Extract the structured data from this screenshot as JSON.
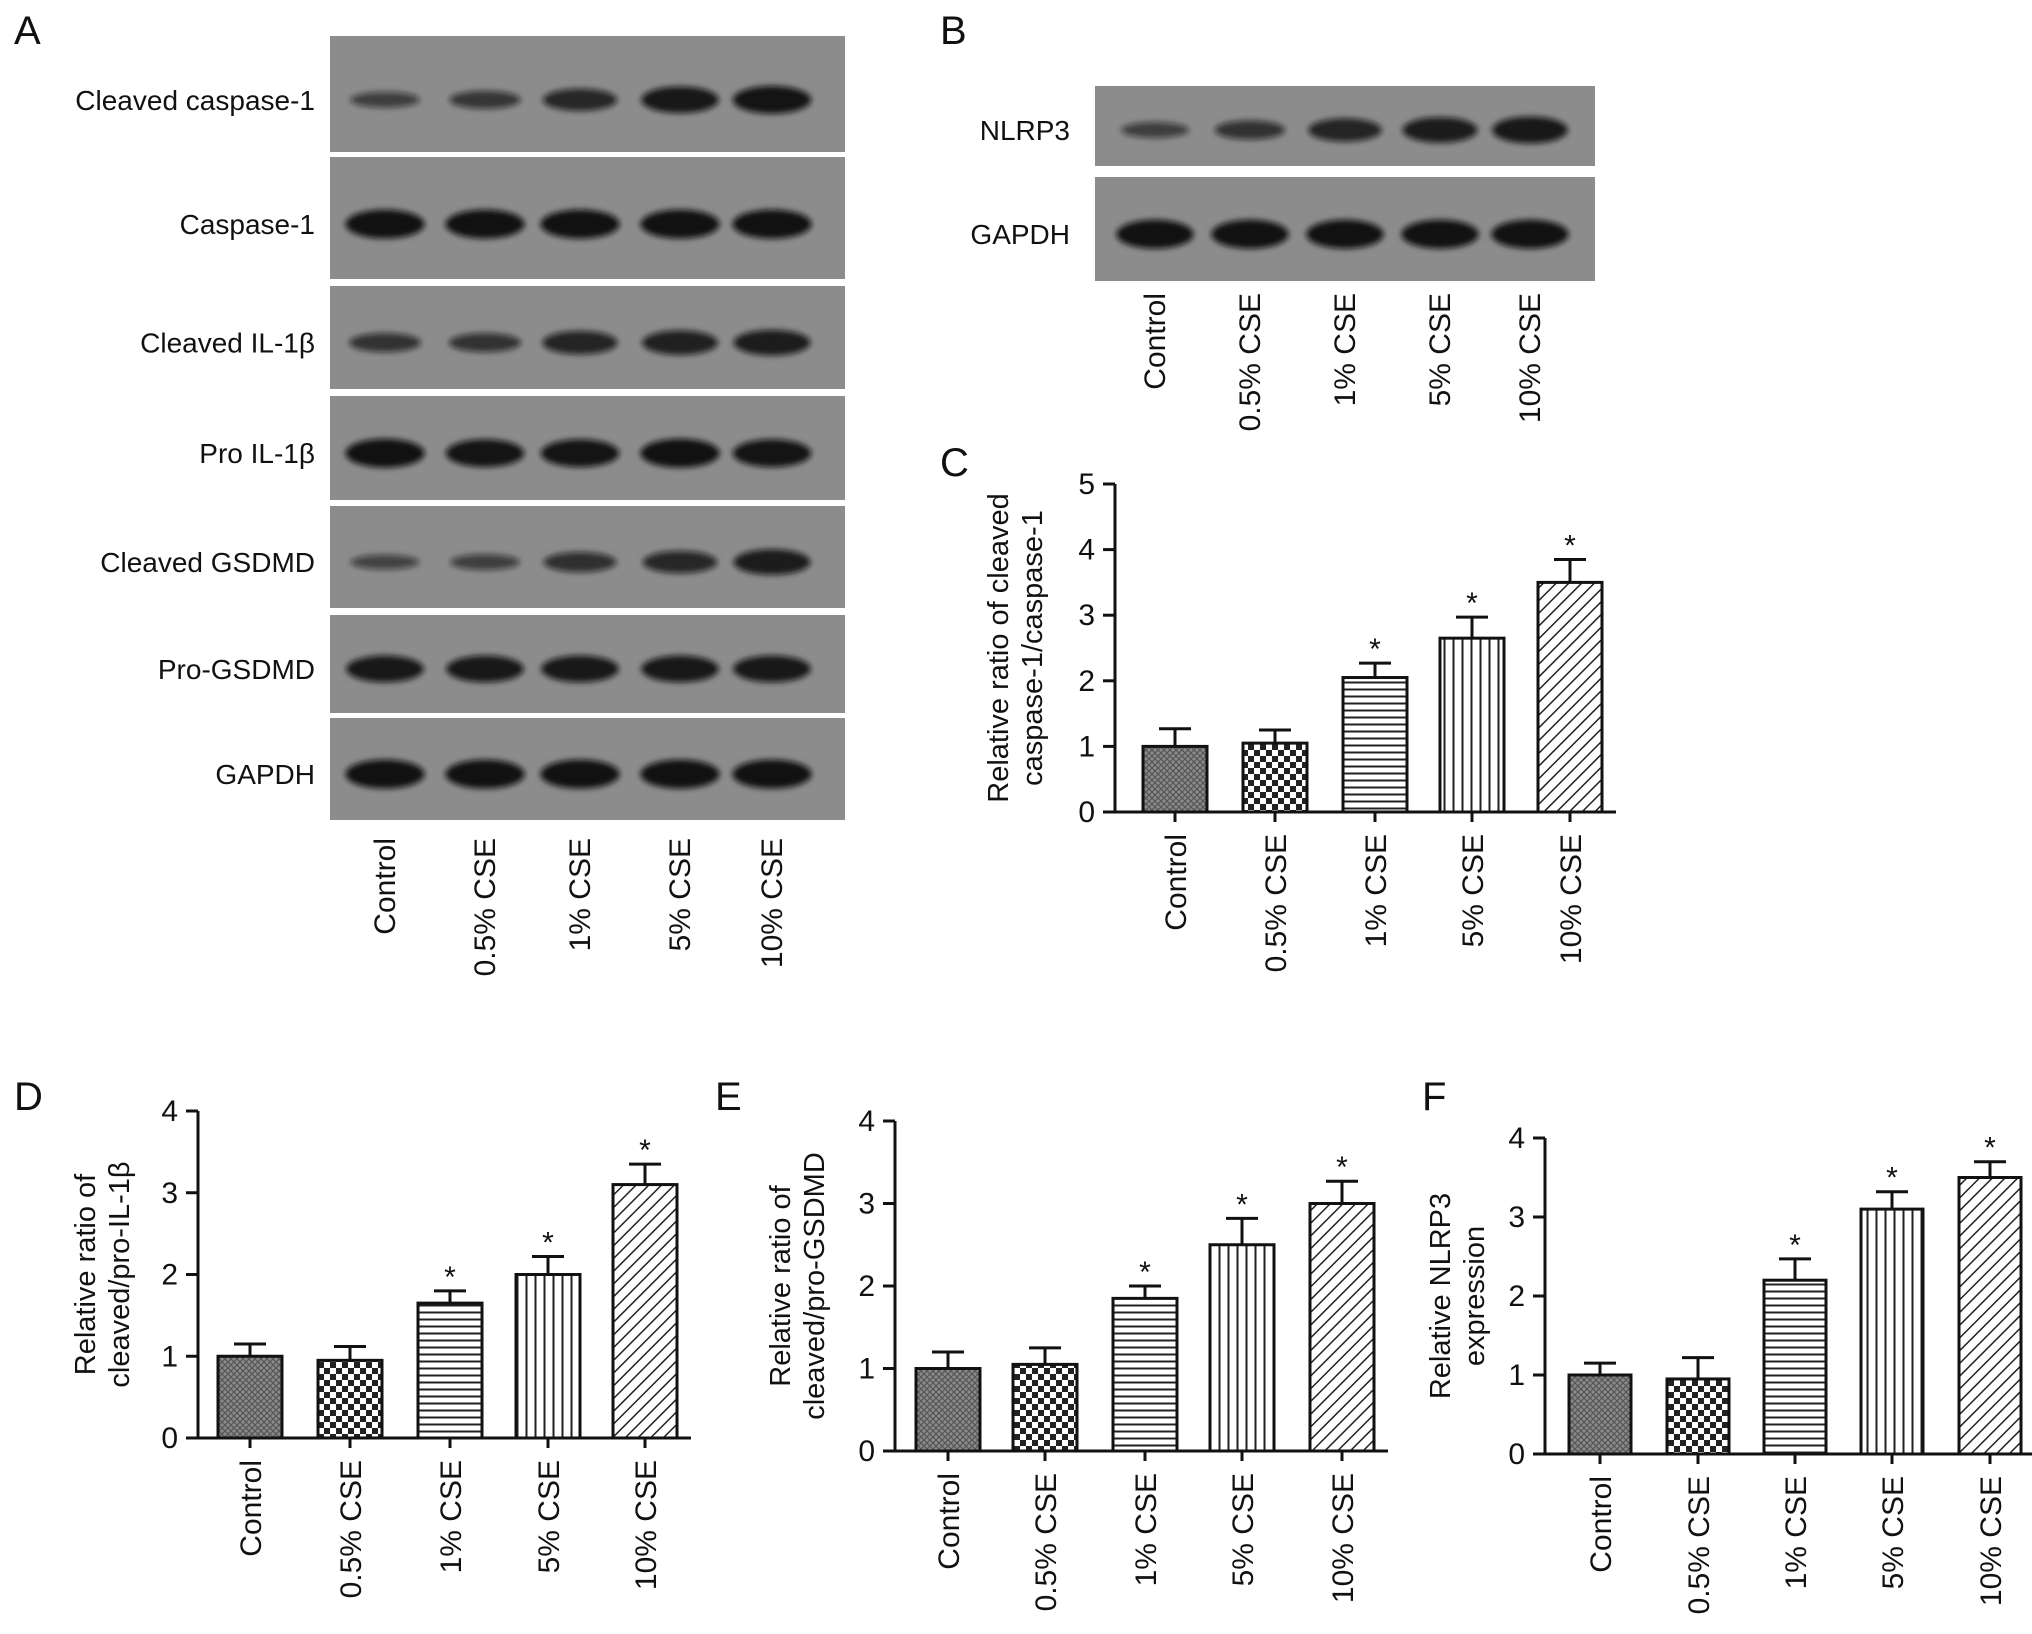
{
  "panel_letters": [
    "A",
    "B",
    "C",
    "D",
    "E",
    "F"
  ],
  "blot_a": {
    "rows": [
      "Cleaved caspase-1",
      "Caspase-1",
      "Cleaved IL-1β",
      "Pro IL-1β",
      "Cleaved GSDMD",
      "Pro-GSDMD",
      "GAPDH"
    ],
    "band_intensity": [
      [
        0.35,
        0.45,
        0.65,
        0.85,
        0.9
      ],
      [
        0.95,
        0.95,
        0.95,
        0.95,
        0.95
      ],
      [
        0.5,
        0.5,
        0.7,
        0.75,
        0.8
      ],
      [
        0.95,
        0.9,
        0.9,
        0.95,
        0.9
      ],
      [
        0.3,
        0.35,
        0.55,
        0.65,
        0.8
      ],
      [
        0.85,
        0.85,
        0.85,
        0.85,
        0.85
      ],
      [
        0.95,
        0.95,
        0.95,
        0.95,
        0.95
      ]
    ]
  },
  "blot_b": {
    "rows": [
      "NLRP3",
      "GAPDH"
    ],
    "band_intensity": [
      [
        0.35,
        0.5,
        0.7,
        0.8,
        0.85
      ],
      [
        0.95,
        0.95,
        0.95,
        0.95,
        0.95
      ]
    ]
  },
  "lanes": [
    "Control",
    "0.5% CSE",
    "1% CSE",
    "5% CSE",
    "10% CSE"
  ],
  "chart_data": [
    {
      "panel": "C",
      "type": "bar",
      "categories": [
        "Control",
        "0.5% CSE",
        "1% CSE",
        "5% CSE",
        "10% CSE"
      ],
      "values": [
        1.0,
        1.05,
        2.05,
        2.65,
        3.5
      ],
      "errors": [
        0.27,
        0.2,
        0.22,
        0.32,
        0.35
      ],
      "significant": [
        false,
        false,
        true,
        true,
        true
      ],
      "ylabel_lines": [
        "Relative ratio of cleaved",
        "caspase-1/caspase-1"
      ],
      "ylim": [
        0,
        5
      ],
      "yticks": [
        0,
        1,
        2,
        3,
        4,
        5
      ]
    },
    {
      "panel": "D",
      "type": "bar",
      "categories": [
        "Control",
        "0.5% CSE",
        "1% CSE",
        "5% CSE",
        "10% CSE"
      ],
      "values": [
        1.0,
        0.95,
        1.65,
        2.0,
        3.1
      ],
      "errors": [
        0.15,
        0.17,
        0.15,
        0.22,
        0.25
      ],
      "significant": [
        false,
        false,
        true,
        true,
        true
      ],
      "ylabel_lines": [
        "Relative ratio of",
        "cleaved/pro-IL-1β"
      ],
      "ylim": [
        0,
        4
      ],
      "yticks": [
        0,
        1,
        2,
        3,
        4
      ]
    },
    {
      "panel": "E",
      "type": "bar",
      "categories": [
        "Control",
        "0.5% CSE",
        "1% CSE",
        "5% CSE",
        "10% CSE"
      ],
      "values": [
        1.0,
        1.05,
        1.85,
        2.5,
        3.0
      ],
      "errors": [
        0.2,
        0.2,
        0.15,
        0.32,
        0.27
      ],
      "significant": [
        false,
        false,
        true,
        true,
        true
      ],
      "ylabel_lines": [
        "Relative ratio of",
        "cleaved/pro-GSDMD"
      ],
      "ylim": [
        0,
        4
      ],
      "yticks": [
        0,
        1,
        2,
        3,
        4
      ]
    },
    {
      "panel": "F",
      "type": "bar",
      "categories": [
        "Control",
        "0.5% CSE",
        "1% CSE",
        "5% CSE",
        "10% CSE"
      ],
      "values": [
        1.0,
        0.95,
        2.2,
        3.1,
        3.5
      ],
      "errors": [
        0.15,
        0.27,
        0.27,
        0.22,
        0.2
      ],
      "significant": [
        false,
        false,
        true,
        true,
        true
      ],
      "ylabel_lines": [
        "Relative NLRP3",
        "expression"
      ],
      "ylim": [
        0,
        4
      ],
      "yticks": [
        0,
        1,
        2,
        3,
        4
      ]
    }
  ],
  "significance_mark": "*"
}
